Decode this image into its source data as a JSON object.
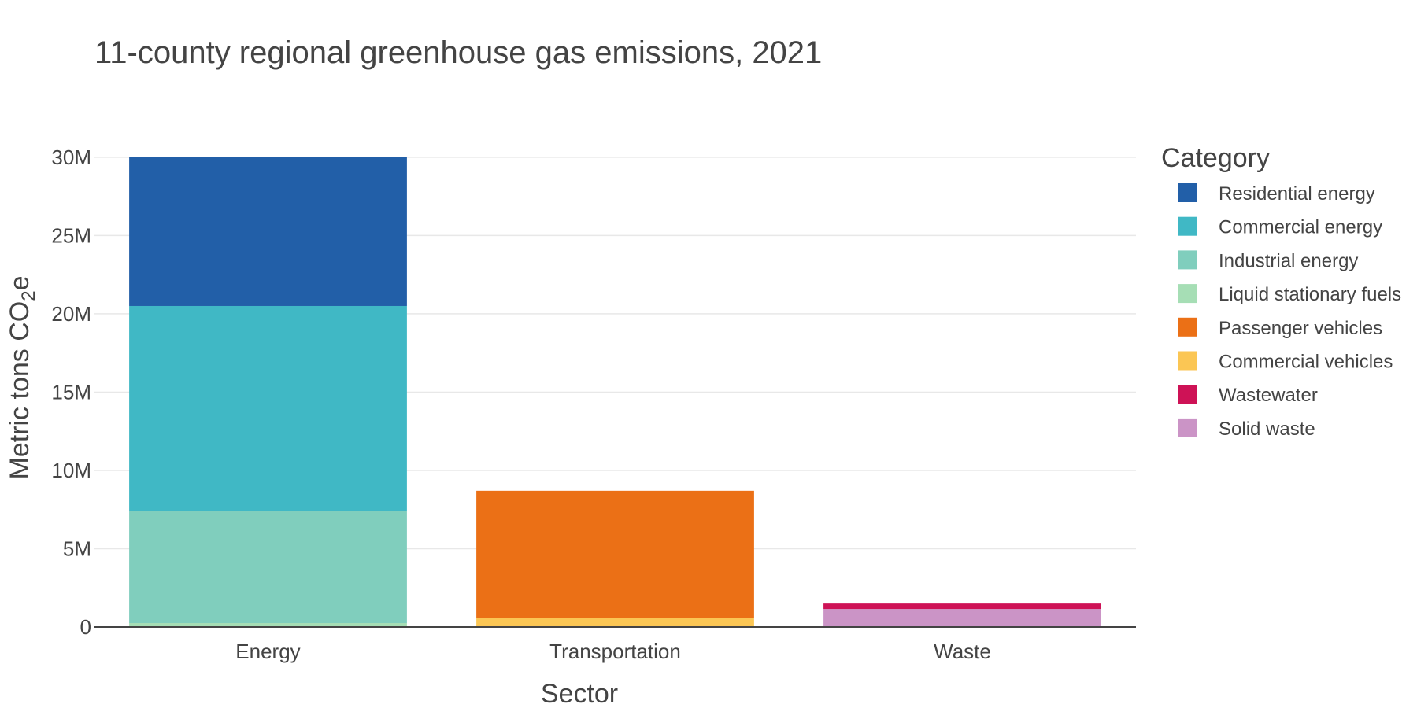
{
  "chart_data": {
    "type": "bar",
    "stacked": true,
    "title": "11-county regional greenhouse gas emissions, 2021",
    "xlabel": "Sector",
    "ylabel": "Metric tons CO",
    "ylabel_subscript": "2",
    "ylabel_suffix": "e",
    "categories": [
      "Energy",
      "Transportation",
      "Waste"
    ],
    "ylim": [
      0,
      31000000
    ],
    "yticks": [
      0,
      5000000,
      10000000,
      15000000,
      20000000,
      25000000,
      30000000
    ],
    "ytick_labels": [
      "0",
      "5M",
      "10M",
      "15M",
      "20M",
      "25M",
      "30M"
    ],
    "grid": true,
    "legend": {
      "title": "Category",
      "placement": "right"
    },
    "series": [
      {
        "name": "Liquid stationary fuels",
        "color": "#A6DEB5",
        "values": [
          250000,
          0,
          0
        ]
      },
      {
        "name": "Industrial energy",
        "color": "#80CEBD",
        "values": [
          7150000,
          0,
          0
        ]
      },
      {
        "name": "Commercial energy",
        "color": "#40B8C5",
        "values": [
          13100000,
          0,
          0
        ]
      },
      {
        "name": "Residential energy",
        "color": "#225FA8",
        "values": [
          9500000,
          0,
          0
        ]
      },
      {
        "name": "Commercial vehicles",
        "color": "#FBC654",
        "values": [
          0,
          600000,
          0
        ]
      },
      {
        "name": "Passenger vehicles",
        "color": "#EB7016",
        "values": [
          0,
          8100000,
          0
        ]
      },
      {
        "name": "Solid waste",
        "color": "#CB94C6",
        "values": [
          0,
          0,
          1150000
        ]
      },
      {
        "name": "Wastewater",
        "color": "#CE1256",
        "values": [
          0,
          0,
          350000
        ]
      }
    ],
    "legend_order": [
      "Residential energy",
      "Commercial energy",
      "Industrial energy",
      "Liquid stationary fuels",
      "Passenger vehicles",
      "Commercial vehicles",
      "Wastewater",
      "Solid waste"
    ]
  }
}
